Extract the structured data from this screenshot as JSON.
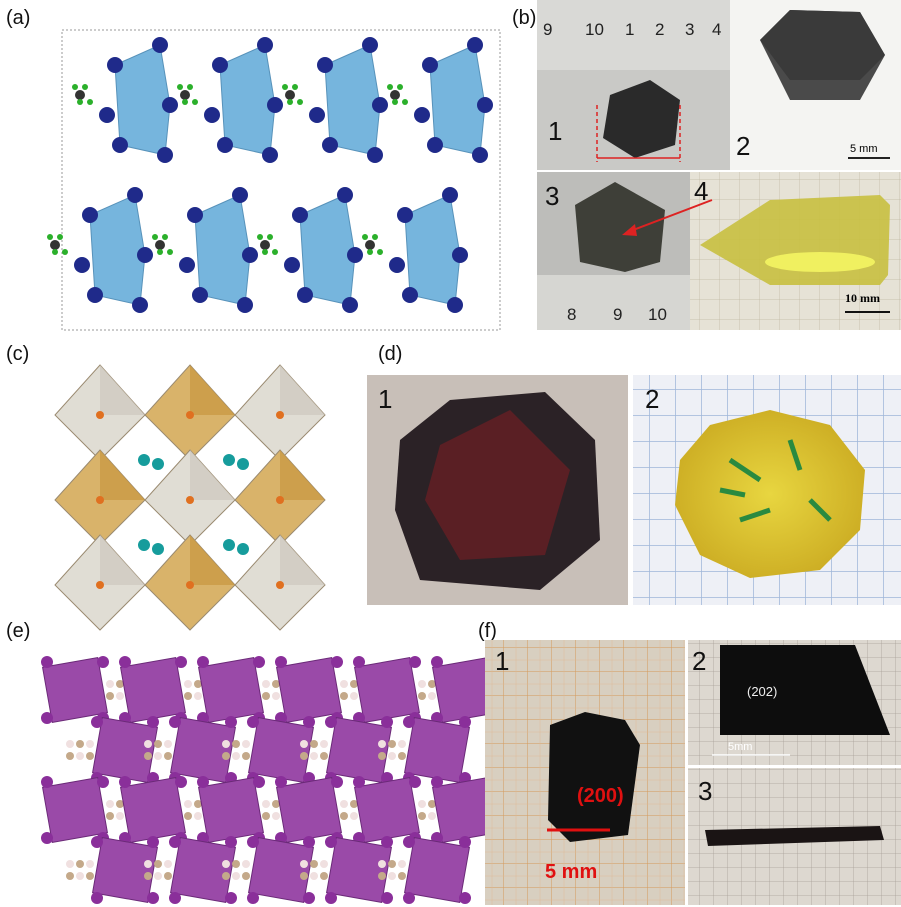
{
  "panels": [
    {
      "label": "(a)"
    },
    {
      "label": "(b)",
      "ruler_top": [
        "9",
        "10",
        "1",
        "2",
        "3",
        "4"
      ],
      "photos": [
        "1",
        "2",
        "3",
        "4"
      ],
      "scale_bars": [
        "5 mm",
        "10 mm"
      ],
      "ruler_bottom": [
        "8",
        "9",
        "10"
      ]
    },
    {
      "label": "(c)"
    },
    {
      "label": "(d)",
      "photos": [
        "1",
        "2"
      ]
    },
    {
      "label": "(e)"
    },
    {
      "label": "(f)",
      "photos": [
        "1",
        "2",
        "3"
      ],
      "facets": [
        "(200)",
        "(202)"
      ],
      "scale_bars": [
        "5 mm",
        "5mm"
      ]
    }
  ]
}
